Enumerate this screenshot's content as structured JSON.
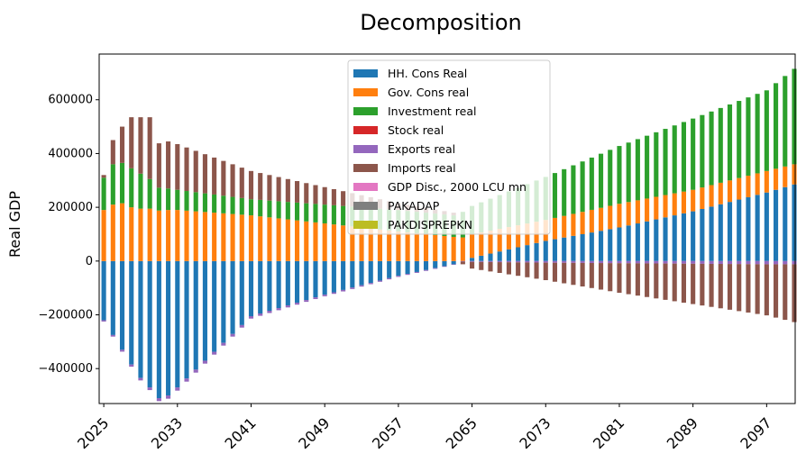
{
  "chart_data": {
    "type": "bar",
    "stacked": true,
    "title": "Decomposition",
    "xlabel": "",
    "ylabel": "Real GDP",
    "ylim": [
      -530000,
      770000
    ],
    "yticks": [
      -400000,
      -200000,
      0,
      200000,
      400000,
      600000
    ],
    "ytick_labels": [
      "−400000",
      "−200000",
      "0",
      "200000",
      "400000",
      "600000"
    ],
    "x_start": 2025,
    "x_end": 2100,
    "xticks": [
      2025,
      2033,
      2041,
      2049,
      2057,
      2065,
      2073,
      2081,
      2089,
      2097
    ],
    "xtick_labels": [
      "2025",
      "2033",
      "2041",
      "2049",
      "2057",
      "2065",
      "2073",
      "2081",
      "2089",
      "2097"
    ],
    "legend_position": "top-center",
    "grid": false,
    "series": [
      {
        "name": "HH. Cons Real",
        "color": "#1f77b4"
      },
      {
        "name": "Gov. Cons real",
        "color": "#ff7f0e"
      },
      {
        "name": "Investment real",
        "color": "#2ca02c"
      },
      {
        "name": "Stock real",
        "color": "#d62728"
      },
      {
        "name": "Exports real",
        "color": "#9467bd"
      },
      {
        "name": "Imports real",
        "color": "#8c564b"
      },
      {
        "name": "GDP Disc., 2000 LCU mn",
        "color": "#e377c2"
      },
      {
        "name": "PAKADAP",
        "color": "#7f7f7f"
      },
      {
        "name": "PAKDISPREPKN",
        "color": "#bcbd22"
      }
    ],
    "anchors": {
      "years": [
        2025,
        2026,
        2027,
        2028,
        2029,
        2030,
        2031,
        2032,
        2033,
        2041,
        2049,
        2057,
        2063,
        2064,
        2065,
        2073,
        2081,
        2089,
        2097,
        2100
      ],
      "hh": [
        -220000,
        -275000,
        -330000,
        -385000,
        -435000,
        -470000,
        -510000,
        -500000,
        -470000,
        -205000,
        -125000,
        -55000,
        -12000,
        0,
        12000,
        75000,
        125000,
        185000,
        255000,
        285000
      ],
      "gov": [
        190000,
        210000,
        215000,
        200000,
        195000,
        195000,
        188000,
        190000,
        190000,
        170000,
        140000,
        110000,
        90000,
        88000,
        88000,
        78000,
        88000,
        80000,
        80000,
        75000
      ],
      "inv": [
        120000,
        150000,
        150000,
        145000,
        130000,
        110000,
        85000,
        80000,
        75000,
        60000,
        70000,
        80000,
        80000,
        95000,
        105000,
        160000,
        215000,
        265000,
        300000,
        355000
      ],
      "exports": [
        -5000,
        -6000,
        -7000,
        -8000,
        -9000,
        -10000,
        -11000,
        -12000,
        -12000,
        -9000,
        -6000,
        -4000,
        -2000,
        -2000,
        -3000,
        -6000,
        -8000,
        -10000,
        -12000,
        -12000
      ],
      "imports": [
        10000,
        90000,
        135000,
        190000,
        210000,
        230000,
        165000,
        175000,
        170000,
        105000,
        65000,
        25000,
        10000,
        -10000,
        -25000,
        -65000,
        -110000,
        -150000,
        -190000,
        -215000
      ]
    }
  }
}
